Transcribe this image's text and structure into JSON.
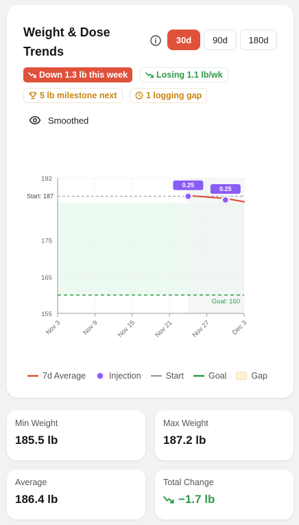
{
  "card": {
    "title": "Weight & Dose Trends",
    "ranges": [
      {
        "label": "30d",
        "active": true
      },
      {
        "label": "90d",
        "active": false
      },
      {
        "label": "180d",
        "active": false
      }
    ],
    "chips": {
      "down_week": "Down 1.3 lb this week",
      "losing_rate": "Losing 1.1 lb/wk",
      "milestone": "5 lb milestone next",
      "logging_gap": "1 logging gap"
    },
    "smoothed_label": "Smoothed",
    "colors": {
      "accent": "#e0513a",
      "green": "#2e9a4a",
      "amber": "#c98512",
      "injection": "#8b5cf6"
    }
  },
  "chart_data": {
    "type": "line",
    "ylim": [
      155,
      192
    ],
    "yticks": [
      155,
      165,
      175,
      192
    ],
    "x_ticks": [
      "Nov 3",
      "Nov 9",
      "Nov 15",
      "Nov 21",
      "Nov 27",
      "Dec 3"
    ],
    "start_label": "Start: 187",
    "start_value": 187,
    "goal_label": "Goal: 160",
    "goal_value": 160,
    "series": [
      {
        "name": "7d Average",
        "x": [
          "Nov 24",
          "Nov 30",
          "Dec 3"
        ],
        "values": [
          187.2,
          186.4,
          185.5
        ]
      }
    ],
    "injections": [
      {
        "x": "Nov 24",
        "value": 187.0,
        "dose": "0.25"
      },
      {
        "x": "Nov 30",
        "value": 186.0,
        "dose": "0.25"
      }
    ],
    "gap": {
      "from": "Nov 24",
      "to": "Dec 3"
    }
  },
  "legend": {
    "avg": "7d Average",
    "injection": "Injection",
    "start": "Start",
    "goal": "Goal",
    "gap": "Gap"
  },
  "stats": {
    "min_label": "Min Weight",
    "min_value": "185.5 lb",
    "max_label": "Max Weight",
    "max_value": "187.2 lb",
    "avg_label": "Average",
    "avg_value": "186.4 lb",
    "change_label": "Total Change",
    "change_value": "−1.7 lb"
  }
}
